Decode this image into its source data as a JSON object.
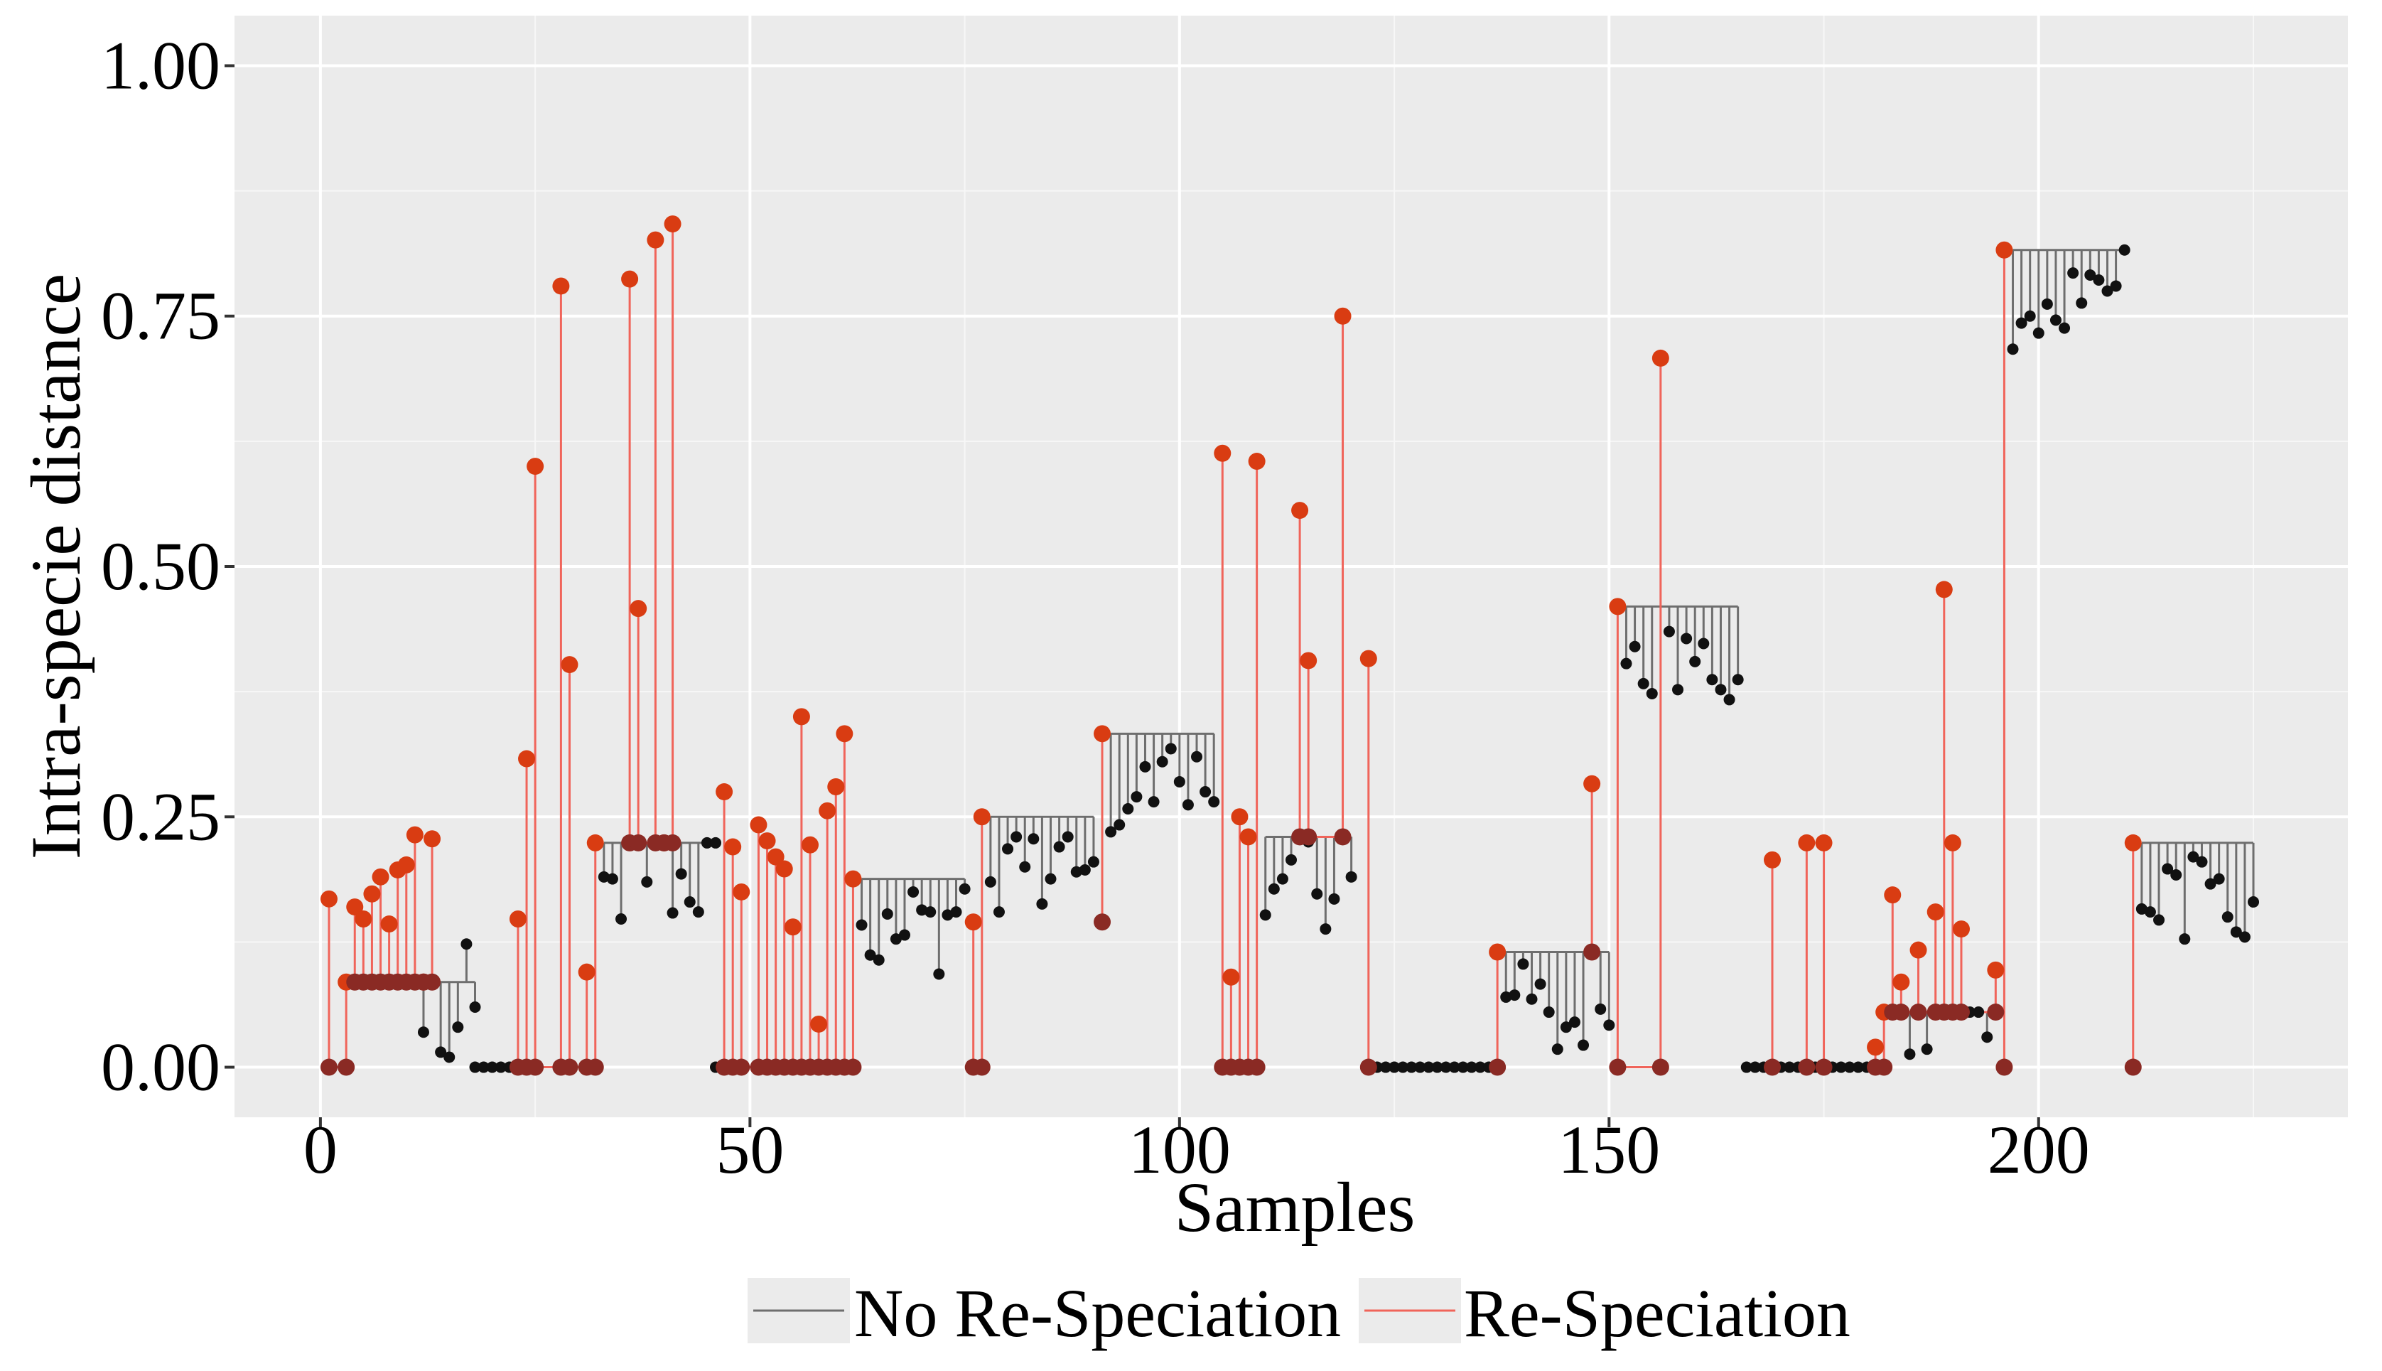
{
  "chart_data": {
    "type": "lollipop",
    "title": "",
    "xlabel": "Samples",
    "ylabel": "Intra-specie distance",
    "xlim": [
      -10,
      236
    ],
    "ylim": [
      -0.05,
      1.05
    ],
    "x_ticks": [
      0,
      50,
      100,
      150,
      200
    ],
    "x_tick_labels": [
      "0",
      "50",
      "100",
      "150",
      "200"
    ],
    "y_ticks": [
      0.0,
      0.25,
      0.5,
      0.75,
      1.0
    ],
    "y_tick_labels": [
      "0.00",
      "0.25",
      "0.50",
      "0.75",
      "1.00"
    ],
    "grid": true,
    "legend_position": "bottom",
    "series": [
      {
        "name": "No Re-Speciation",
        "color": "#6e6e6e",
        "point_color": "#111111"
      },
      {
        "name": "Re-Speciation",
        "color": "#f0645a",
        "point_color": "#d93c12"
      }
    ],
    "groups": [
      {
        "series": "Re-Speciation",
        "base": 0.0,
        "x": [
          1,
          3
        ],
        "y": [
          0.168,
          0.085
        ]
      },
      {
        "series": "Re-Speciation",
        "base": 0.085,
        "x": [
          4,
          5,
          6,
          7,
          8,
          9,
          10,
          11,
          12,
          13
        ],
        "y": [
          0.16,
          0.148,
          0.173,
          0.19,
          0.143,
          0.197,
          0.202,
          0.232,
          0.085,
          0.228
        ]
      },
      {
        "series": "No Re-Speciation",
        "base": 0.085,
        "x": [
          12,
          14,
          15,
          16,
          17,
          18
        ],
        "y": [
          0.035,
          0.015,
          0.01,
          0.04,
          0.123,
          0.06
        ]
      },
      {
        "series": "No Re-Speciation",
        "base": 0.0,
        "x": [
          18,
          19,
          20,
          21,
          22
        ],
        "y": [
          0.0,
          0.0,
          0.0,
          0.0,
          0.0
        ]
      },
      {
        "series": "Re-Speciation",
        "base": 0.0,
        "x": [
          23,
          24,
          25,
          28,
          29,
          31,
          32
        ],
        "y": [
          0.148,
          0.308,
          0.6,
          0.78,
          0.402,
          0.095,
          0.224
        ]
      },
      {
        "series": "No Re-Speciation",
        "base": 0.224,
        "x": [
          33,
          34,
          35,
          38,
          41,
          42,
          43,
          44,
          45,
          46
        ],
        "y": [
          0.19,
          0.188,
          0.148,
          0.185,
          0.154,
          0.193,
          0.165,
          0.155,
          0.224,
          0.224
        ]
      },
      {
        "series": "Re-Speciation",
        "base": 0.224,
        "x": [
          36,
          37,
          39,
          40,
          41
        ],
        "y": [
          0.787,
          0.458,
          0.826,
          0.224,
          0.842
        ]
      },
      {
        "series": "No Re-Speciation",
        "base": 0.0,
        "x": [
          46
        ],
        "y": [
          0.0
        ]
      },
      {
        "series": "Re-Speciation",
        "base": 0.0,
        "x": [
          47,
          48,
          49,
          51,
          52,
          53,
          54,
          55,
          56,
          57,
          58,
          59,
          60,
          61,
          62
        ],
        "y": [
          0.275,
          0.22,
          0.175,
          0.242,
          0.226,
          0.21,
          0.198,
          0.14,
          0.35,
          0.222,
          0.043,
          0.256,
          0.28,
          0.333,
          0.188
        ]
      },
      {
        "series": "No Re-Speciation",
        "base": 0.188,
        "x": [
          63,
          64,
          65,
          66,
          67,
          68,
          69,
          70,
          71,
          72,
          73,
          74,
          75
        ],
        "y": [
          0.142,
          0.112,
          0.107,
          0.153,
          0.128,
          0.132,
          0.175,
          0.157,
          0.155,
          0.093,
          0.152,
          0.155,
          0.178
        ]
      },
      {
        "series": "Re-Speciation",
        "base": 0.0,
        "x": [
          76,
          77
        ],
        "y": [
          0.145,
          0.25
        ]
      },
      {
        "series": "No Re-Speciation",
        "base": 0.25,
        "x": [
          78,
          79,
          80,
          81,
          82,
          83,
          84,
          85,
          86,
          87,
          88,
          89,
          90
        ],
        "y": [
          0.185,
          0.155,
          0.218,
          0.23,
          0.2,
          0.228,
          0.163,
          0.188,
          0.22,
          0.23,
          0.195,
          0.197,
          0.205
        ]
      },
      {
        "series": "Re-Speciation",
        "base": 0.145,
        "x": [
          91
        ],
        "y": [
          0.333
        ]
      },
      {
        "series": "No Re-Speciation",
        "base": 0.333,
        "x": [
          92,
          93,
          94,
          95,
          96,
          97,
          98,
          99,
          100,
          101,
          102,
          103,
          104
        ],
        "y": [
          0.235,
          0.242,
          0.258,
          0.27,
          0.3,
          0.265,
          0.305,
          0.318,
          0.285,
          0.262,
          0.31,
          0.275,
          0.265
        ]
      },
      {
        "series": "Re-Speciation",
        "base": 0.0,
        "x": [
          105,
          106,
          107,
          108,
          109
        ],
        "y": [
          0.613,
          0.09,
          0.25,
          0.23,
          0.605
        ]
      },
      {
        "series": "No Re-Speciation",
        "base": 0.23,
        "x": [
          110,
          111,
          112,
          113,
          115,
          116,
          117,
          118,
          120
        ],
        "y": [
          0.152,
          0.178,
          0.188,
          0.207,
          0.225,
          0.173,
          0.138,
          0.168,
          0.19
        ]
      },
      {
        "series": "Re-Speciation",
        "base": 0.23,
        "x": [
          114,
          115,
          119
        ],
        "y": [
          0.556,
          0.406,
          0.75
        ]
      },
      {
        "series": "Re-Speciation",
        "base": 0.0,
        "x": [
          122
        ],
        "y": [
          0.408
        ]
      },
      {
        "series": "No Re-Speciation",
        "base": 0.0,
        "x": [
          123,
          124,
          125,
          126,
          127,
          128,
          129,
          130,
          131,
          132,
          133,
          134,
          135,
          136
        ],
        "y": [
          0.0,
          0.0,
          0.0,
          0.0,
          0.0,
          0.0,
          0.0,
          0.0,
          0.0,
          0.0,
          0.0,
          0.0,
          0.0,
          0.0
        ]
      },
      {
        "series": "Re-Speciation",
        "base": 0.0,
        "x": [
          137
        ],
        "y": [
          0.115
        ]
      },
      {
        "series": "No Re-Speciation",
        "base": 0.115,
        "x": [
          138,
          139,
          140,
          141,
          142,
          143,
          144,
          145,
          146,
          147,
          149,
          150
        ],
        "y": [
          0.07,
          0.072,
          0.103,
          0.068,
          0.083,
          0.055,
          0.018,
          0.04,
          0.045,
          0.022,
          0.058,
          0.042
        ]
      },
      {
        "series": "Re-Speciation",
        "base": 0.115,
        "x": [
          148
        ],
        "y": [
          0.283
        ]
      },
      {
        "series": "Re-Speciation",
        "base": 0.0,
        "x": [
          151,
          156
        ],
        "y": [
          0.46,
          0.708
        ]
      },
      {
        "series": "No Re-Speciation",
        "base": 0.46,
        "x": [
          152,
          153,
          154,
          155,
          157,
          158,
          159,
          160,
          161,
          162,
          163,
          164,
          165
        ],
        "y": [
          0.403,
          0.42,
          0.383,
          0.373,
          0.435,
          0.377,
          0.428,
          0.405,
          0.423,
          0.387,
          0.377,
          0.367,
          0.387
        ]
      },
      {
        "series": "No Re-Speciation",
        "base": 0.0,
        "x": [
          166,
          167,
          168,
          170,
          171,
          172,
          174,
          176,
          177,
          178,
          179,
          180
        ],
        "y": [
          0.0,
          0.0,
          0.0,
          0.0,
          0.0,
          0.0,
          0.0,
          0.0,
          0.0,
          0.0,
          0.0,
          0.0
        ]
      },
      {
        "series": "Re-Speciation",
        "base": 0.0,
        "x": [
          169,
          173,
          175,
          181,
          182
        ],
        "y": [
          0.207,
          0.224,
          0.224,
          0.02,
          0.055
        ]
      },
      {
        "series": "Re-Speciation",
        "base": 0.055,
        "x": [
          183,
          184,
          186,
          188,
          189,
          190,
          191,
          195
        ],
        "y": [
          0.172,
          0.085,
          0.117,
          0.155,
          0.477,
          0.224,
          0.138,
          0.097
        ]
      },
      {
        "series": "No Re-Speciation",
        "base": 0.055,
        "x": [
          185,
          187,
          192,
          193,
          194
        ],
        "y": [
          0.013,
          0.018,
          0.055,
          0.055,
          0.03
        ]
      },
      {
        "series": "Re-Speciation",
        "base": 0.0,
        "x": [
          196
        ],
        "y": [
          0.816
        ]
      },
      {
        "series": "No Re-Speciation",
        "base": 0.816,
        "x": [
          197,
          198,
          199,
          200,
          201,
          202,
          203,
          204,
          205,
          206,
          207,
          208,
          209,
          210
        ],
        "y": [
          0.717,
          0.743,
          0.75,
          0.733,
          0.762,
          0.746,
          0.738,
          0.793,
          0.763,
          0.791,
          0.786,
          0.775,
          0.78,
          0.816
        ]
      },
      {
        "series": "Re-Speciation",
        "base": 0.0,
        "x": [
          211
        ],
        "y": [
          0.224
        ]
      },
      {
        "series": "No Re-Speciation",
        "base": 0.224,
        "x": [
          212,
          213,
          214,
          215,
          216,
          217,
          218,
          219,
          220,
          221,
          222,
          223,
          224,
          225
        ],
        "y": [
          0.158,
          0.155,
          0.147,
          0.198,
          0.192,
          0.128,
          0.21,
          0.205,
          0.183,
          0.188,
          0.15,
          0.135,
          0.13,
          0.165
        ]
      }
    ]
  }
}
